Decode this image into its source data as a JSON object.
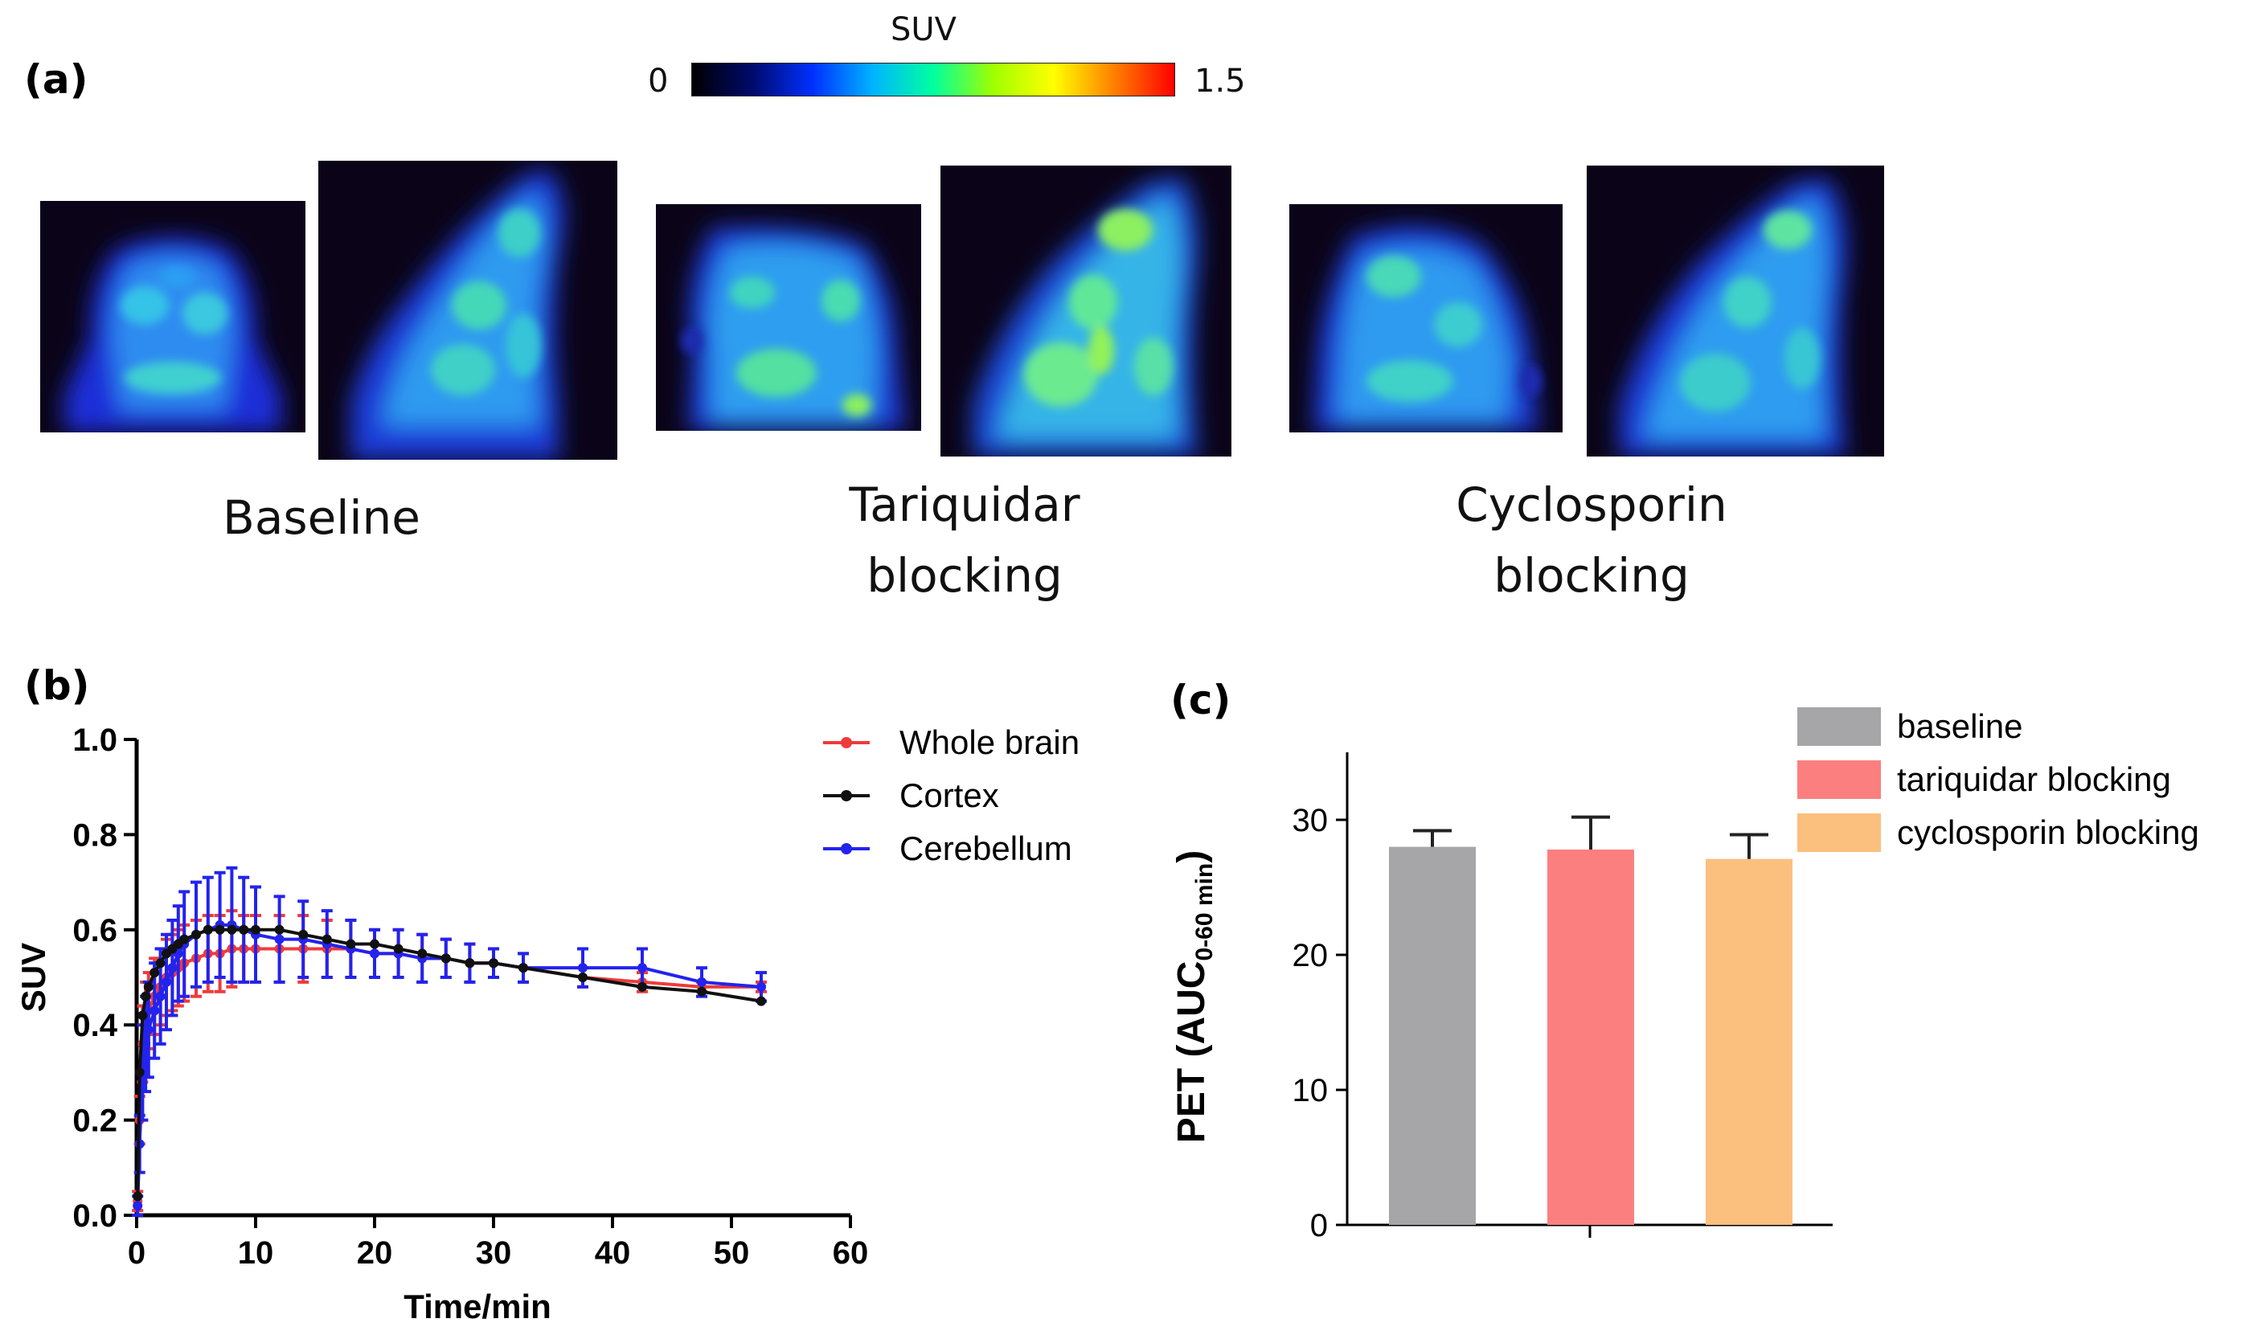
{
  "panel_a": {
    "label": "(a)",
    "colorbar": {
      "title": "SUV",
      "min_label": "0",
      "max_label": "1.5",
      "colors": [
        "#000000",
        "#000a6b",
        "#0030ff",
        "#00b4ff",
        "#00ffa0",
        "#a0ff00",
        "#ffff00",
        "#ff8000",
        "#ff0000"
      ]
    },
    "groups": [
      {
        "caption_lines": [
          "Baseline"
        ]
      },
      {
        "caption_lines": [
          "Tariquidar",
          "blocking"
        ]
      },
      {
        "caption_lines": [
          "Cyclosporin",
          "blocking"
        ]
      }
    ]
  },
  "panel_b": {
    "label": "(b)"
  },
  "panel_c": {
    "label": "(c)"
  },
  "chart_data": [
    {
      "type": "line",
      "panel": "(b)",
      "xlabel": "Time/min",
      "ylabel": "SUV",
      "xlim": [
        0,
        60
      ],
      "ylim": [
        0.0,
        1.0
      ],
      "x_ticks": [
        "0",
        "10",
        "20",
        "30",
        "40",
        "50",
        "60"
      ],
      "y_ticks": [
        "0.0",
        "0.2",
        "0.4",
        "0.6",
        "0.8",
        "1.0"
      ],
      "legend_position": "top-right",
      "x": [
        0.08,
        0.25,
        0.5,
        0.75,
        1,
        1.5,
        2,
        2.5,
        3,
        3.5,
        4,
        5,
        6,
        7,
        8,
        9,
        10,
        12,
        14,
        16,
        18,
        20,
        22,
        24,
        26,
        28,
        30,
        32.5,
        37.5,
        42.5,
        47.5,
        52.5
      ],
      "series": [
        {
          "name": "Whole brain",
          "color": "#ee3b3b",
          "values": [
            0.03,
            0.2,
            0.36,
            0.41,
            0.43,
            0.46,
            0.48,
            0.5,
            0.51,
            0.52,
            0.53,
            0.54,
            0.55,
            0.55,
            0.56,
            0.56,
            0.56,
            0.56,
            0.56,
            0.56,
            0.56,
            0.55,
            0.55,
            0.54,
            0.54,
            0.53,
            0.53,
            0.52,
            0.5,
            0.49,
            0.48,
            0.48
          ],
          "errors": [
            0.02,
            0.05,
            0.08,
            0.08,
            0.08,
            0.08,
            0.08,
            0.08,
            0.08,
            0.08,
            0.08,
            0.08,
            0.08,
            0.08,
            0.08,
            0.07,
            0.07,
            0.07,
            0.07,
            0.06,
            0.06,
            0.05,
            0.05,
            0.05,
            0.04,
            0.04,
            0.03,
            0.03,
            0.02,
            0.02,
            0.01,
            0.01
          ]
        },
        {
          "name": "Cortex",
          "color": "#111111",
          "values": [
            0.04,
            0.3,
            0.42,
            0.46,
            0.48,
            0.51,
            0.53,
            0.55,
            0.56,
            0.57,
            0.58,
            0.59,
            0.6,
            0.6,
            0.6,
            0.6,
            0.6,
            0.6,
            0.59,
            0.58,
            0.57,
            0.57,
            0.56,
            0.55,
            0.54,
            0.53,
            0.53,
            0.52,
            0.5,
            0.48,
            0.47,
            0.45
          ]
        },
        {
          "name": "Cerebellum",
          "color": "#2323ee",
          "values": [
            0.02,
            0.15,
            0.3,
            0.36,
            0.39,
            0.43,
            0.46,
            0.49,
            0.52,
            0.55,
            0.57,
            0.59,
            0.6,
            0.61,
            0.61,
            0.6,
            0.59,
            0.58,
            0.58,
            0.57,
            0.56,
            0.55,
            0.55,
            0.54,
            0.54,
            0.53,
            0.53,
            0.52,
            0.52,
            0.52,
            0.49,
            0.48
          ],
          "errors": [
            0.02,
            0.06,
            0.1,
            0.1,
            0.1,
            0.1,
            0.1,
            0.1,
            0.1,
            0.1,
            0.11,
            0.11,
            0.11,
            0.11,
            0.12,
            0.11,
            0.1,
            0.09,
            0.08,
            0.07,
            0.06,
            0.05,
            0.05,
            0.05,
            0.04,
            0.04,
            0.03,
            0.03,
            0.04,
            0.04,
            0.03,
            0.03
          ]
        }
      ]
    },
    {
      "type": "bar",
      "panel": "(c)",
      "ylabel_main": "PET (AUC",
      "ylabel_sub": "0-60 min",
      "ylabel_close": ")",
      "ylim": [
        0,
        35
      ],
      "y_ticks": [
        "0",
        "10",
        "20",
        "30"
      ],
      "legend_position": "top-right",
      "categories": [
        "baseline",
        "tariquidar blocking",
        "cyclosporin blocking"
      ],
      "values": [
        28.0,
        27.8,
        27.1
      ],
      "errors": [
        1.2,
        2.4,
        1.8
      ],
      "colors": [
        "#a6a6a8",
        "#fc7f7f",
        "#fbbf7e"
      ]
    }
  ]
}
